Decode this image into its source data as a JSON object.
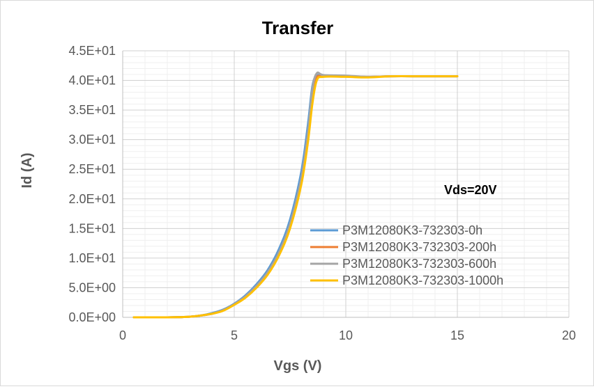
{
  "chart_data": {
    "type": "line",
    "title": "Transfer",
    "xlabel": "Vgs (V)",
    "ylabel": "Id (A)",
    "xlim": [
      0,
      20
    ],
    "ylim": [
      0,
      45
    ],
    "x_ticks": [
      "0",
      "5",
      "10",
      "15",
      "20"
    ],
    "y_ticks": [
      "0.0E+00",
      "5.0E+00",
      "1.0E+01",
      "1.5E+01",
      "2.0E+01",
      "2.5E+01",
      "3.0E+01",
      "3.5E+01",
      "4.0E+01",
      "4.5E+01"
    ],
    "grid": true,
    "legend_position": "right",
    "annotation": "Vds=20V",
    "series": [
      {
        "name": "P3M12080K3-732303-0h",
        "color": "#5b9bd5",
        "points": [
          [
            0.5,
            0
          ],
          [
            2,
            0
          ],
          [
            3,
            0.1
          ],
          [
            3.5,
            0.3
          ],
          [
            4,
            0.7
          ],
          [
            4.5,
            1.3
          ],
          [
            5,
            2.3
          ],
          [
            5.5,
            3.7
          ],
          [
            6,
            5.6
          ],
          [
            6.5,
            8.0
          ],
          [
            7,
            11.5
          ],
          [
            7.5,
            16.5
          ],
          [
            8,
            24.5
          ],
          [
            8.3,
            32.5
          ],
          [
            8.5,
            39.0
          ],
          [
            8.7,
            40.8
          ],
          [
            9,
            40.7
          ],
          [
            10,
            40.7
          ],
          [
            11,
            40.6
          ],
          [
            12,
            40.7
          ],
          [
            13,
            40.7
          ],
          [
            14,
            40.7
          ],
          [
            15,
            40.7
          ]
        ]
      },
      {
        "name": "P3M12080K3-732303-200h",
        "color": "#ed7d31",
        "points": [
          [
            0.5,
            0
          ],
          [
            2,
            0
          ],
          [
            3,
            0.1
          ],
          [
            3.5,
            0.3
          ],
          [
            4,
            0.6
          ],
          [
            4.5,
            1.2
          ],
          [
            5,
            2.2
          ],
          [
            5.5,
            3.5
          ],
          [
            6,
            5.3
          ],
          [
            6.5,
            7.6
          ],
          [
            7,
            10.9
          ],
          [
            7.5,
            15.7
          ],
          [
            8,
            23.3
          ],
          [
            8.3,
            31.0
          ],
          [
            8.5,
            37.5
          ],
          [
            8.7,
            40.5
          ],
          [
            9,
            40.7
          ],
          [
            10,
            40.7
          ],
          [
            11,
            40.6
          ],
          [
            12,
            40.7
          ],
          [
            13,
            40.7
          ],
          [
            14,
            40.7
          ],
          [
            15,
            40.7
          ]
        ]
      },
      {
        "name": "P3M12080K3-732303-600h",
        "color": "#a5a5a5",
        "points": [
          [
            0.5,
            0
          ],
          [
            2,
            0
          ],
          [
            3,
            0.1
          ],
          [
            3.5,
            0.3
          ],
          [
            4,
            0.6
          ],
          [
            4.5,
            1.2
          ],
          [
            5,
            2.2
          ],
          [
            5.5,
            3.5
          ],
          [
            6,
            5.3
          ],
          [
            6.5,
            7.6
          ],
          [
            7,
            10.9
          ],
          [
            7.5,
            15.7
          ],
          [
            8,
            23.3
          ],
          [
            8.3,
            31.0
          ],
          [
            8.5,
            38.5
          ],
          [
            8.7,
            41.2
          ],
          [
            9,
            40.9
          ],
          [
            10,
            40.8
          ],
          [
            11,
            40.6
          ],
          [
            12,
            40.7
          ],
          [
            13,
            40.7
          ],
          [
            14,
            40.7
          ],
          [
            15,
            40.7
          ]
        ]
      },
      {
        "name": "P3M12080K3-732303-1000h",
        "color": "#ffc000",
        "points": [
          [
            0.5,
            0
          ],
          [
            2,
            0
          ],
          [
            3,
            0.1
          ],
          [
            3.5,
            0.3
          ],
          [
            4,
            0.6
          ],
          [
            4.5,
            1.1
          ],
          [
            5,
            2.1
          ],
          [
            5.5,
            3.3
          ],
          [
            6,
            5.0
          ],
          [
            6.5,
            7.2
          ],
          [
            7,
            10.4
          ],
          [
            7.5,
            15.0
          ],
          [
            8,
            22.3
          ],
          [
            8.3,
            29.5
          ],
          [
            8.5,
            36.0
          ],
          [
            8.7,
            40.0
          ],
          [
            9,
            40.6
          ],
          [
            10,
            40.6
          ],
          [
            11,
            40.5
          ],
          [
            12,
            40.7
          ],
          [
            13,
            40.7
          ],
          [
            14,
            40.7
          ],
          [
            15,
            40.7
          ]
        ]
      }
    ]
  }
}
